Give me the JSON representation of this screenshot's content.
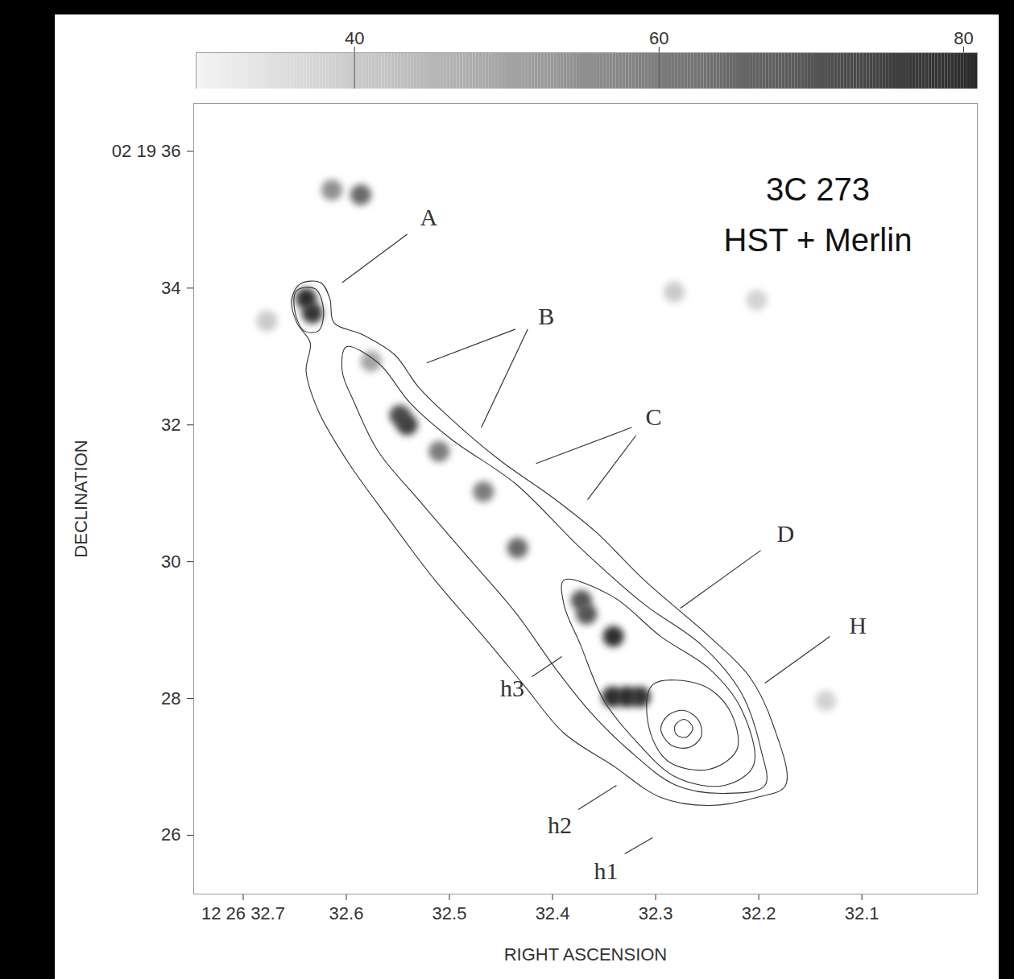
{
  "chart_data": {
    "type": "contour",
    "title": "3C 273",
    "subtitle": "HST + Merlin",
    "x_label": "RIGHT ASCENSION",
    "y_label": "DECLINATION",
    "xlim": [
      32.748,
      31.988
    ],
    "xticks": [
      {
        "value": 32.7,
        "label": "12 26 32.7"
      },
      32.6,
      32.5,
      32.4,
      32.3,
      32.2,
      32.1
    ],
    "ylim": [
      25.14,
      36.7
    ],
    "yticks": [
      {
        "value": 36,
        "label": "02 19 36"
      },
      34,
      32,
      30,
      28,
      26
    ],
    "colorbar": {
      "range": [
        29.6,
        80.9
      ],
      "ticks": [
        40,
        60,
        80
      ]
    },
    "knots": [
      {
        "ra": 32.614,
        "dec": 35.435,
        "value": 55
      },
      {
        "ra": 32.586,
        "dec": 35.365,
        "value": 65
      },
      {
        "ra": 32.639,
        "dec": 33.847,
        "value": 80
      },
      {
        "ra": 32.633,
        "dec": 33.635,
        "value": 78
      },
      {
        "ra": 32.677,
        "dec": 33.518,
        "value": 40
      },
      {
        "ra": 32.576,
        "dec": 32.929,
        "value": 50
      },
      {
        "ra": 32.548,
        "dec": 32.141,
        "value": 72
      },
      {
        "ra": 32.541,
        "dec": 32.0,
        "value": 75
      },
      {
        "ra": 32.51,
        "dec": 31.612,
        "value": 60
      },
      {
        "ra": 32.467,
        "dec": 31.024,
        "value": 60
      },
      {
        "ra": 32.434,
        "dec": 30.2,
        "value": 65
      },
      {
        "ra": 32.372,
        "dec": 29.435,
        "value": 70
      },
      {
        "ra": 32.367,
        "dec": 29.235,
        "value": 70
      },
      {
        "ra": 32.341,
        "dec": 28.906,
        "value": 80
      },
      {
        "ra": 32.342,
        "dec": 28.024,
        "value": 80
      },
      {
        "ra": 32.328,
        "dec": 28.024,
        "value": 80
      },
      {
        "ra": 32.315,
        "dec": 28.024,
        "value": 78
      },
      {
        "ra": 32.282,
        "dec": 33.941,
        "value": 40
      },
      {
        "ra": 32.202,
        "dec": 33.824,
        "value": 38
      },
      {
        "ra": 32.135,
        "dec": 27.965,
        "value": 38
      }
    ],
    "contours": [
      [
        [
          32.645,
          34.059
        ],
        [
          32.625,
          34.082
        ],
        [
          32.616,
          33.847
        ],
        [
          32.612,
          33.494
        ],
        [
          32.584,
          33.318
        ],
        [
          32.553,
          33.024
        ],
        [
          32.53,
          32.553
        ],
        [
          32.498,
          32.082
        ],
        [
          32.452,
          31.494
        ],
        [
          32.397,
          30.906
        ],
        [
          32.358,
          30.435
        ],
        [
          32.311,
          29.729
        ],
        [
          32.248,
          28.906
        ],
        [
          32.209,
          28.318
        ],
        [
          32.186,
          27.612
        ],
        [
          32.174,
          26.729
        ],
        [
          32.202,
          26.553
        ],
        [
          32.248,
          26.435
        ],
        [
          32.295,
          26.553
        ],
        [
          32.342,
          27.024
        ],
        [
          32.389,
          27.494
        ],
        [
          32.428,
          28.2
        ],
        [
          32.467,
          28.906
        ],
        [
          32.514,
          29.729
        ],
        [
          32.561,
          30.671
        ],
        [
          32.6,
          31.494
        ],
        [
          32.627,
          32.2
        ],
        [
          32.639,
          32.788
        ],
        [
          32.635,
          33.2
        ],
        [
          32.648,
          33.494
        ],
        [
          32.653,
          33.824
        ]
      ],
      [
        [
          32.6,
          33.141
        ],
        [
          32.569,
          32.906
        ],
        [
          32.538,
          32.318
        ],
        [
          32.498,
          31.788
        ],
        [
          32.436,
          31.141
        ],
        [
          32.373,
          30.2
        ],
        [
          32.311,
          29.376
        ],
        [
          32.256,
          28.788
        ],
        [
          32.217,
          28.082
        ],
        [
          32.198,
          27.259
        ],
        [
          32.194,
          26.729
        ],
        [
          32.233,
          26.612
        ],
        [
          32.28,
          26.729
        ],
        [
          32.327,
          27.259
        ],
        [
          32.366,
          27.847
        ],
        [
          32.397,
          28.435
        ],
        [
          32.436,
          29.259
        ],
        [
          32.483,
          30.082
        ],
        [
          32.53,
          30.906
        ],
        [
          32.569,
          31.612
        ],
        [
          32.592,
          32.318
        ],
        [
          32.604,
          32.788
        ]
      ],
      [
        [
          32.389,
          29.729
        ],
        [
          32.342,
          29.494
        ],
        [
          32.295,
          28.906
        ],
        [
          32.248,
          28.435
        ],
        [
          32.217,
          27.847
        ],
        [
          32.205,
          27.024
        ],
        [
          32.233,
          26.729
        ],
        [
          32.28,
          26.847
        ],
        [
          32.319,
          27.376
        ],
        [
          32.35,
          27.965
        ],
        [
          32.373,
          28.788
        ],
        [
          32.389,
          29.376
        ]
      ],
      [
        [
          32.303,
          28.2
        ],
        [
          32.256,
          28.2
        ],
        [
          32.229,
          27.847
        ],
        [
          32.221,
          27.259
        ],
        [
          32.248,
          26.965
        ],
        [
          32.288,
          27.082
        ],
        [
          32.307,
          27.612
        ]
      ],
      [
        [
          32.295,
          27.553
        ],
        [
          32.288,
          27.753
        ],
        [
          32.272,
          27.824
        ],
        [
          32.258,
          27.671
        ],
        [
          32.256,
          27.435
        ],
        [
          32.268,
          27.282
        ],
        [
          32.285,
          27.318
        ]
      ],
      [
        [
          32.281,
          27.612
        ],
        [
          32.272,
          27.694
        ],
        [
          32.264,
          27.576
        ],
        [
          32.27,
          27.435
        ],
        [
          32.28,
          27.471
        ]
      ],
      [
        [
          32.648,
          33.965
        ],
        [
          32.63,
          33.988
        ],
        [
          32.622,
          33.671
        ],
        [
          32.627,
          33.376
        ],
        [
          32.641,
          33.376
        ],
        [
          32.65,
          33.671
        ]
      ]
    ],
    "annotations": [
      {
        "text": "A",
        "ra": 32.52,
        "dec": 35.024,
        "pointers": [
          [
            [
              32.541,
              34.788
            ],
            [
              32.604,
              34.082
            ]
          ]
        ]
      },
      {
        "text": "B",
        "ra": 32.406,
        "dec": 33.576,
        "pointers": [
          [
            [
              32.436,
              33.4
            ],
            [
              32.522,
              32.906
            ]
          ],
          [
            [
              32.424,
              33.4
            ],
            [
              32.469,
              31.965
            ]
          ]
        ]
      },
      {
        "text": "C",
        "ra": 32.302,
        "dec": 32.106,
        "pointers": [
          [
            [
              32.323,
              31.965
            ],
            [
              32.416,
              31.435
            ]
          ],
          [
            [
              32.319,
              31.847
            ],
            [
              32.366,
              30.906
            ]
          ]
        ]
      },
      {
        "text": "D",
        "ra": 32.174,
        "dec": 30.4,
        "pointers": [
          [
            [
              32.198,
              30.165
            ],
            [
              32.276,
              29.318
            ]
          ]
        ]
      },
      {
        "text": "H",
        "ra": 32.104,
        "dec": 29.059,
        "pointers": [
          [
            [
              32.131,
              28.906
            ],
            [
              32.194,
              28.224
            ]
          ]
        ]
      },
      {
        "text": "h3",
        "ra": 32.439,
        "dec": 28.141,
        "pointers": [
          [
            [
              32.42,
              28.318
            ],
            [
              32.391,
              28.612
            ]
          ]
        ]
      },
      {
        "text": "h2",
        "ra": 32.393,
        "dec": 26.141,
        "pointers": [
          [
            [
              32.375,
              26.376
            ],
            [
              32.338,
              26.729
            ]
          ]
        ]
      },
      {
        "text": "h1",
        "ra": 32.348,
        "dec": 25.471,
        "pointers": [
          [
            [
              32.33,
              25.729
            ],
            [
              32.303,
              25.965
            ]
          ]
        ]
      }
    ]
  }
}
